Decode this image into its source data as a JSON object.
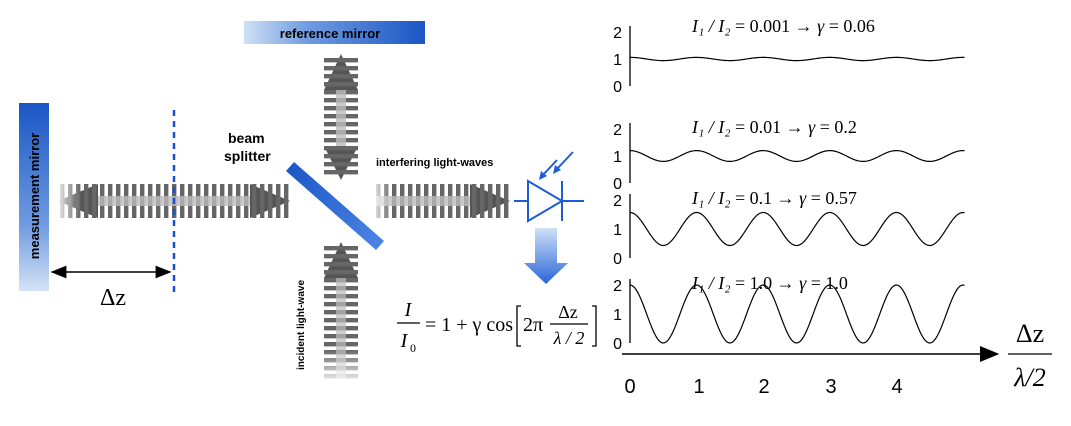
{
  "labels": {
    "reference_mirror": "reference mirror",
    "measurement_mirror": "measurement mirror",
    "beam": "beam",
    "splitter": "splitter",
    "interfering": "interfering light-waves",
    "incident": "incident light-wave",
    "delta_z": "Δz"
  },
  "formula": {
    "I": "I",
    "I0": "I",
    "I0_sub": "0",
    "rhs_prefix": "= 1 + γ cos",
    "two_pi": "2π",
    "frac_num": "Δz",
    "frac_den": "λ / 2"
  },
  "plot": {
    "x_ticks": [
      "0",
      "1",
      "2",
      "3",
      "4"
    ],
    "x_label_num": "Δz",
    "x_label_den": "λ/2",
    "panels": [
      {
        "ratio_label": "I₁ / I₂",
        "ratio_value": "= 0.001",
        "arrow": "→",
        "gamma_label": "γ",
        "gamma_value": "= 0.06",
        "gamma": 0.06,
        "y_ticks": [
          "2",
          "1",
          "0"
        ]
      },
      {
        "ratio_label": "I₁ / I₂",
        "ratio_value": "= 0.01",
        "arrow": "→",
        "gamma_label": "γ",
        "gamma_value": "= 0.2",
        "gamma": 0.2,
        "y_ticks": [
          "2",
          "1",
          "0"
        ]
      },
      {
        "ratio_label": "I₁ / I₂",
        "ratio_value": "= 0.1",
        "arrow": "→",
        "gamma_label": "γ",
        "gamma_value": "= 0.57",
        "gamma": 0.57,
        "y_ticks": [
          "2",
          "1",
          "0"
        ]
      },
      {
        "ratio_label": "I₁ / I₂",
        "ratio_value": "= 1.0",
        "arrow": "→",
        "gamma_label": "γ",
        "gamma_value": "= 1.0",
        "gamma": 1.0,
        "y_ticks": [
          "2",
          "1",
          "0"
        ]
      }
    ]
  },
  "colors": {
    "mirror_blue": "#1a56c4",
    "detector_blue": "#1e5bd6",
    "dash_blue": "#1a4fd0",
    "beam_dark": "#555555"
  }
}
